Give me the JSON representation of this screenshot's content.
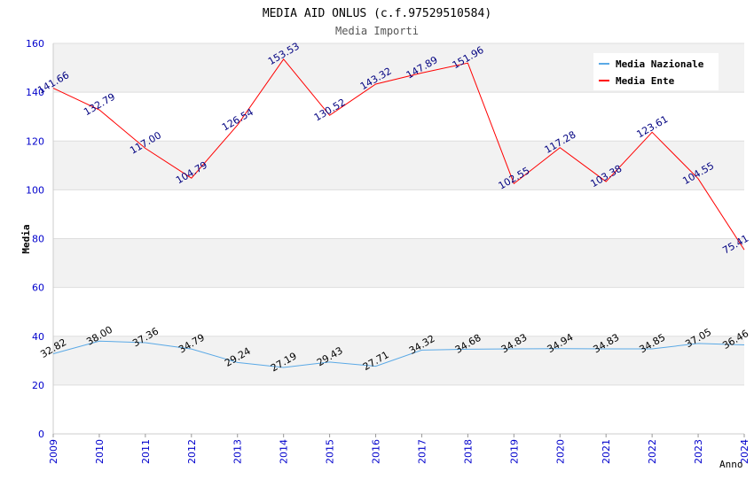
{
  "chart_data": {
    "type": "line",
    "title": "MEDIA AID ONLUS (c.f.97529510584)",
    "subtitle": "Media Importi",
    "xlabel": "Anno",
    "ylabel": "Media",
    "categories": [
      "2009",
      "2010",
      "2011",
      "2012",
      "2013",
      "2014",
      "2015",
      "2016",
      "2017",
      "2018",
      "2019",
      "2020",
      "2021",
      "2022",
      "2023",
      "2024"
    ],
    "ylim": [
      0,
      160
    ],
    "yticks": [
      0,
      20,
      40,
      60,
      80,
      100,
      120,
      140,
      160
    ],
    "ytick_labels": [
      "0",
      "20",
      "40",
      "60",
      "80",
      "100",
      "120",
      "140",
      "160"
    ],
    "grid": "horizontal bands",
    "legend_position": "top-right",
    "series": [
      {
        "name": "Media Nazionale",
        "color": "#5aa9e6",
        "label_color": "#000000",
        "values": [
          32.82,
          38.0,
          37.36,
          34.79,
          29.24,
          27.19,
          29.43,
          27.71,
          34.32,
          34.68,
          34.83,
          34.94,
          34.83,
          34.85,
          37.05,
          36.46
        ],
        "labels": [
          "32.82",
          "38.00",
          "37.36",
          "34.79",
          "29.24",
          "27.19",
          "29.43",
          "27.71",
          "34.32",
          "34.68",
          "34.83",
          "34.94",
          "34.83",
          "34.85",
          "37.05",
          "36.46"
        ]
      },
      {
        "name": "Media Ente",
        "color": "#ff0000",
        "label_color": "#000080",
        "values": [
          141.66,
          132.79,
          117.0,
          104.79,
          126.54,
          153.53,
          130.52,
          143.32,
          147.89,
          151.96,
          102.55,
          117.28,
          103.38,
          123.61,
          104.55,
          75.41
        ],
        "labels": [
          "141.66",
          "132.79",
          "117.00",
          "104.79",
          "126.54",
          "153.53",
          "130.52",
          "143.32",
          "147.89",
          "151.96",
          "102.55",
          "117.28",
          "103.38",
          "123.61",
          "104.55",
          "75.41"
        ]
      }
    ]
  },
  "colors": {
    "axis_text": "#0000cc",
    "band": "#f2f2f2",
    "gridline": "#dddddd"
  }
}
